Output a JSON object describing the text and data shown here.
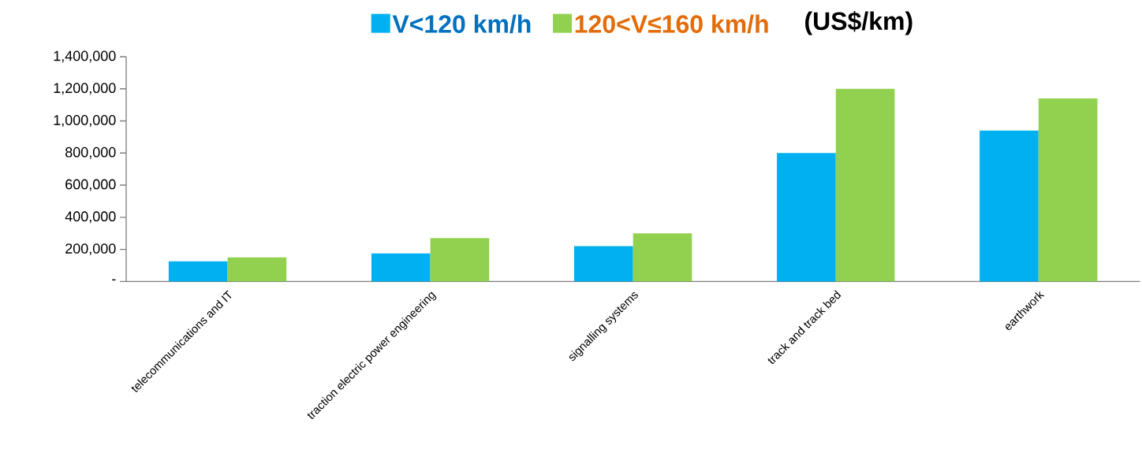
{
  "chart_data": {
    "type": "bar",
    "ylabel": "(US$/km)",
    "categories": [
      "telecommunications and IT",
      "traction electric power engineering",
      "signalling systems",
      "track and track bed",
      "earthwork"
    ],
    "series": [
      {
        "name": "V<120 km/h",
        "color": "#00b0f0",
        "values": [
          125000,
          175000,
          220000,
          800000,
          940000
        ]
      },
      {
        "name": "120<V≤160 km/h",
        "color": "#92d050",
        "values": [
          150000,
          270000,
          300000,
          1200000,
          1140000
        ]
      }
    ],
    "ylim": [
      0,
      1400000
    ],
    "yticks": [
      {
        "value": 0,
        "label": "-"
      },
      {
        "value": 200000,
        "label": "200,000"
      },
      {
        "value": 400000,
        "label": "400,000"
      },
      {
        "value": 600000,
        "label": "600,000"
      },
      {
        "value": 800000,
        "label": "800,000"
      },
      {
        "value": 1000000,
        "label": "1,000,000"
      },
      {
        "value": 1200000,
        "label": "1,200,000"
      },
      {
        "value": 1400000,
        "label": "1,400,000"
      }
    ],
    "legend": "top",
    "grid": false
  }
}
